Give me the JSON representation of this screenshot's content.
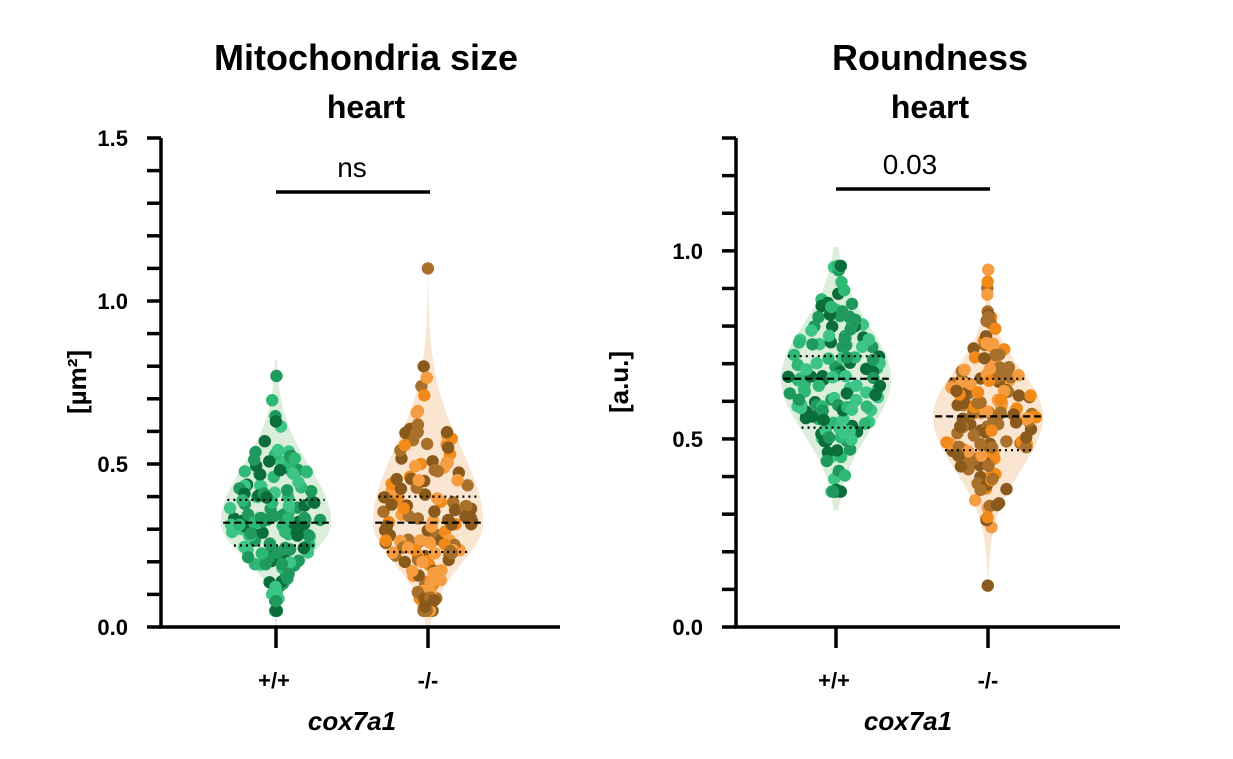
{
  "colors": {
    "wt_palette": [
      "#0b6e3a",
      "#1f9a5c",
      "#2fb774",
      "#3cc587"
    ],
    "ko_palette": [
      "#f28a1a",
      "#f59d40",
      "#8a5a1c",
      "#a8702a"
    ],
    "wt_violin": "#cfe8cf",
    "ko_violin": "#f7dcc0"
  },
  "chart_data": [
    {
      "type": "violin-scatter",
      "title": "Mitochondria size",
      "subtitle": "heart",
      "ylabel": "[µm²]",
      "xlabel": "cox7a1",
      "categories": [
        "+/+",
        "-/-"
      ],
      "ylim": [
        0,
        1.5
      ],
      "yticks": [
        "0.0",
        "0.5",
        "1.0",
        "1.5"
      ],
      "significance": "ns",
      "series": [
        {
          "name": "+/+",
          "median": 0.32,
          "q1": 0.25,
          "q3": 0.39,
          "min": 0.05,
          "max": 0.77
        },
        {
          "name": "-/-",
          "median": 0.32,
          "q1": 0.23,
          "q3": 0.4,
          "min": 0.05,
          "max": 1.1
        }
      ]
    },
    {
      "type": "violin-scatter",
      "title": "Roundness",
      "subtitle": "heart",
      "ylabel": "[a.u.]",
      "xlabel": "cox7a1",
      "categories": [
        "+/+",
        "-/-"
      ],
      "ylim": [
        0,
        1.3
      ],
      "yticks": [
        "0.0",
        "0.5",
        "1.0"
      ],
      "significance": "0.03",
      "series": [
        {
          "name": "+/+",
          "median": 0.66,
          "q1": 0.53,
          "q3": 0.72,
          "min": 0.36,
          "max": 0.96
        },
        {
          "name": "-/-",
          "median": 0.56,
          "q1": 0.47,
          "q3": 0.66,
          "min": 0.11,
          "max": 0.95
        }
      ]
    }
  ]
}
